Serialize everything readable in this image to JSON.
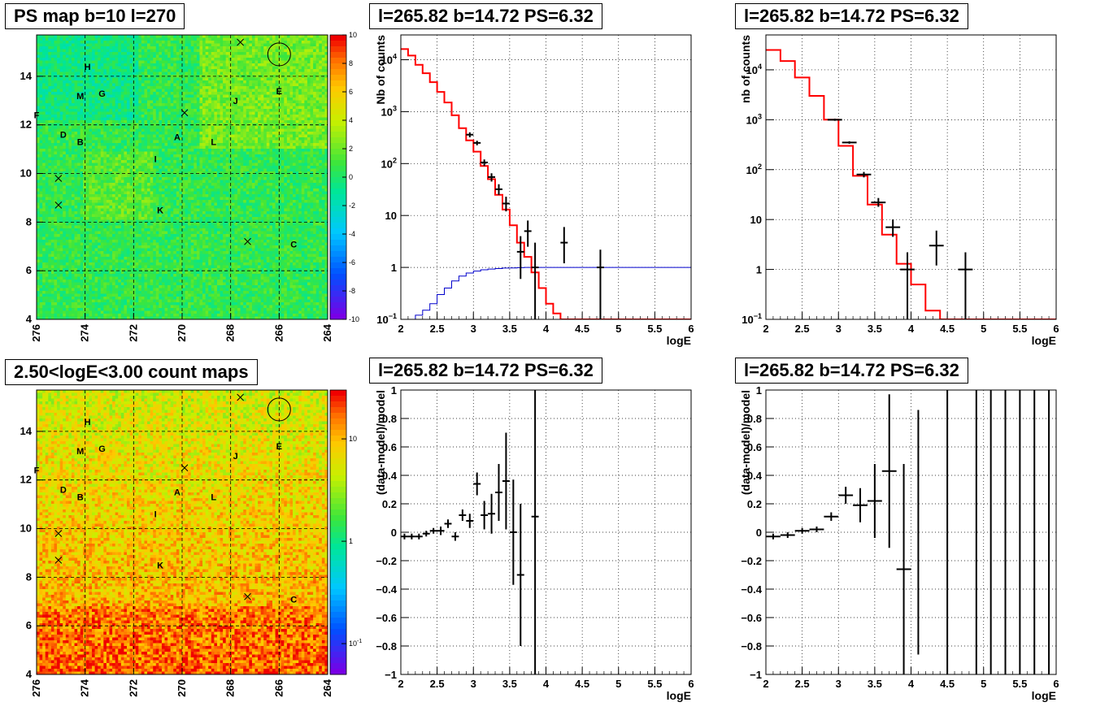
{
  "panels": {
    "ps_map": {
      "title": "PS map b=10 l=270"
    },
    "spec_left": {
      "title": "l=265.82 b=14.72 PS=6.32"
    },
    "spec_right": {
      "title": "l=265.82 b=14.72 PS=6.32"
    },
    "count_map": {
      "title": "2.50<logE<3.00 count maps"
    },
    "resid_left": {
      "title": "l=265.82 b=14.72 PS=6.32"
    },
    "resid_right": {
      "title": "l=265.82 b=14.72 PS=6.32"
    }
  },
  "colors": {
    "model": "#ff0000",
    "exposure": "#0000cc",
    "data": "#000000",
    "grid": "#999999"
  },
  "chart_data": [
    {
      "id": "ps_map",
      "type": "heatmap",
      "title": "PS map b=10 l=270",
      "xlim": [
        276,
        264
      ],
      "ylim": [
        4,
        15.7
      ],
      "x_ticks": [
        "276",
        "274",
        "272",
        "270",
        "268",
        "266",
        "264"
      ],
      "y_ticks": [
        "4",
        "6",
        "8",
        "10",
        "12",
        "14"
      ],
      "colorbar": {
        "scale": "linear",
        "range": [
          -10,
          10
        ],
        "ticks": [
          "10",
          "8",
          "6",
          "4",
          "2",
          "0",
          "-2",
          "-4",
          "-6",
          "-8",
          "-10"
        ]
      },
      "grid": true,
      "source_labels": [
        {
          "name": "H",
          "l": 273.9,
          "b": 14.4
        },
        {
          "name": "M",
          "l": 274.2,
          "b": 13.2
        },
        {
          "name": "G",
          "l": 273.3,
          "b": 13.3
        },
        {
          "name": "F",
          "l": 276.0,
          "b": 12.4
        },
        {
          "name": "D",
          "l": 274.9,
          "b": 11.6
        },
        {
          "name": "B",
          "l": 274.2,
          "b": 11.3
        },
        {
          "name": "A",
          "l": 270.2,
          "b": 11.5
        },
        {
          "name": "L",
          "l": 268.7,
          "b": 11.3
        },
        {
          "name": "J",
          "l": 267.8,
          "b": 13.0
        },
        {
          "name": "E",
          "l": 266.0,
          "b": 13.4
        },
        {
          "name": "I",
          "l": 271.1,
          "b": 10.6
        },
        {
          "name": "K",
          "l": 270.9,
          "b": 8.5
        },
        {
          "name": "C",
          "l": 265.4,
          "b": 7.1
        }
      ],
      "crosses": [
        [
          267.6,
          15.4
        ],
        [
          269.9,
          12.5
        ],
        [
          275.1,
          9.8
        ],
        [
          275.1,
          8.7
        ],
        [
          267.3,
          7.2
        ]
      ],
      "circle": {
        "l": 266.0,
        "b": 14.9
      }
    },
    {
      "id": "spec_left",
      "type": "line",
      "title": "l=265.82 b=14.72 PS=6.32",
      "xlabel": "logE",
      "ylabel": "Nb of counts",
      "xlim": [
        2,
        6
      ],
      "ylim": [
        0.1,
        30000
      ],
      "log_y": true,
      "x_ticks": [
        "2",
        "2.5",
        "3",
        "3.5",
        "4",
        "4.5",
        "5",
        "5.5",
        "6"
      ],
      "y_ticks": [
        "10^{-1}",
        "1",
        "10",
        "10^{2}",
        "10^{3}",
        "10^{4}"
      ],
      "grid": true,
      "model_step": {
        "edges": [
          2.0,
          2.1,
          2.2,
          2.3,
          2.4,
          2.5,
          2.6,
          2.7,
          2.8,
          2.9,
          3.0,
          3.1,
          3.2,
          3.3,
          3.4,
          3.5,
          3.6,
          3.7,
          3.8,
          3.9,
          4.0,
          4.1,
          4.2,
          6.0
        ],
        "values": [
          16000,
          12000,
          8000,
          5500,
          3700,
          2400,
          1500,
          850,
          480,
          280,
          170,
          90,
          50,
          25,
          13,
          6.5,
          3,
          1.6,
          0.8,
          0.4,
          0.2,
          0.13,
          0.1
        ]
      },
      "exposure_step": {
        "edges": [
          2.0,
          2.1,
          2.2,
          2.3,
          2.4,
          2.5,
          2.6,
          2.7,
          2.8,
          2.9,
          3.0,
          3.1,
          3.2,
          3.3,
          3.4,
          3.5,
          3.6,
          3.7,
          3.8,
          6.0
        ],
        "values": [
          0.09,
          0.1,
          0.12,
          0.15,
          0.2,
          0.3,
          0.4,
          0.55,
          0.68,
          0.78,
          0.85,
          0.9,
          0.93,
          0.95,
          0.97,
          0.98,
          0.99,
          1.0,
          1.0
        ]
      },
      "data_points": [
        {
          "x": 2.95,
          "y": 360,
          "ylo": 320,
          "yhi": 400,
          "xerr": 0.05
        },
        {
          "x": 3.05,
          "y": 250,
          "ylo": 225,
          "yhi": 275,
          "xerr": 0.05
        },
        {
          "x": 3.15,
          "y": 105,
          "ylo": 90,
          "yhi": 120,
          "xerr": 0.05
        },
        {
          "x": 3.25,
          "y": 55,
          "ylo": 45,
          "yhi": 65,
          "xerr": 0.05
        },
        {
          "x": 3.35,
          "y": 32,
          "ylo": 25,
          "yhi": 40,
          "xerr": 0.05
        },
        {
          "x": 3.45,
          "y": 17,
          "ylo": 12,
          "yhi": 23,
          "xerr": 0.05
        },
        {
          "x": 3.65,
          "y": 2,
          "ylo": 0.6,
          "yhi": 4,
          "xerr": 0.05
        },
        {
          "x": 3.75,
          "y": 5,
          "ylo": 2.5,
          "yhi": 8,
          "xerr": 0.05
        },
        {
          "x": 3.85,
          "y": 1,
          "ylo": 0.1,
          "yhi": 3,
          "xerr": 0.05
        },
        {
          "x": 4.25,
          "y": 3,
          "ylo": 1.2,
          "yhi": 6,
          "xerr": 0.05
        },
        {
          "x": 4.75,
          "y": 1,
          "ylo": 0.1,
          "yhi": 2.2,
          "xerr": 0.05
        }
      ]
    },
    {
      "id": "spec_right",
      "type": "line",
      "title": "l=265.82 b=14.72 PS=6.32",
      "xlabel": "logE",
      "ylabel": "nb of counts",
      "xlim": [
        2,
        6
      ],
      "ylim": [
        0.1,
        50000
      ],
      "log_y": true,
      "x_ticks": [
        "2",
        "2.5",
        "3",
        "3.5",
        "4",
        "4.5",
        "5",
        "5.5",
        "6"
      ],
      "y_ticks": [
        "10^{-1}",
        "1",
        "10",
        "10^{2}",
        "10^{3}",
        "10^{4}"
      ],
      "grid": true,
      "model_step": {
        "edges": [
          2.0,
          2.2,
          2.4,
          2.6,
          2.8,
          3.0,
          3.2,
          3.4,
          3.6,
          3.8,
          4.0,
          4.2,
          4.4,
          6.0
        ],
        "values": [
          25000,
          15000,
          7000,
          3000,
          1000,
          300,
          75,
          20,
          5,
          1.3,
          0.5,
          0.15,
          0.1
        ]
      },
      "data_points": [
        {
          "x": 2.95,
          "y": 1000,
          "ylo": 950,
          "yhi": 1050,
          "xerr": 0.1
        },
        {
          "x": 3.15,
          "y": 350,
          "ylo": 330,
          "yhi": 370,
          "xerr": 0.1
        },
        {
          "x": 3.35,
          "y": 80,
          "ylo": 70,
          "yhi": 90,
          "xerr": 0.1
        },
        {
          "x": 3.55,
          "y": 22,
          "ylo": 18,
          "yhi": 27,
          "xerr": 0.1
        },
        {
          "x": 3.75,
          "y": 7,
          "ylo": 4.5,
          "yhi": 10,
          "xerr": 0.1
        },
        {
          "x": 3.95,
          "y": 1,
          "ylo": 0.1,
          "yhi": 2.2,
          "xerr": 0.1
        },
        {
          "x": 4.35,
          "y": 3,
          "ylo": 1.2,
          "yhi": 6,
          "xerr": 0.1
        },
        {
          "x": 4.75,
          "y": 1,
          "ylo": 0.1,
          "yhi": 2.2,
          "xerr": 0.1
        }
      ]
    },
    {
      "id": "count_map",
      "type": "heatmap",
      "title": "2.50<logE<3.00 count maps",
      "xlim": [
        276,
        264
      ],
      "ylim": [
        4,
        15.7
      ],
      "x_ticks": [
        "276",
        "274",
        "272",
        "270",
        "268",
        "266",
        "264"
      ],
      "y_ticks": [
        "4",
        "6",
        "8",
        "10",
        "12",
        "14"
      ],
      "colorbar": {
        "scale": "log",
        "range": [
          0.05,
          30
        ],
        "ticks": [
          "10",
          "1",
          "10^{-1}"
        ]
      },
      "grid": true
    },
    {
      "id": "resid_left",
      "type": "scatter",
      "title": "l=265.82 b=14.72 PS=6.32",
      "xlabel": "logE",
      "ylabel": "(data-model)/model",
      "xlim": [
        2,
        6
      ],
      "ylim": [
        -1,
        1
      ],
      "x_ticks": [
        "2",
        "2.5",
        "3",
        "3.5",
        "4",
        "4.5",
        "5",
        "5.5",
        "6"
      ],
      "y_ticks": [
        "-1",
        "-0.8",
        "-0.6",
        "-0.4",
        "-0.2",
        "0",
        "0.2",
        "0.4",
        "0.6",
        "0.8",
        "1"
      ],
      "grid": true,
      "data_points": [
        {
          "x": 2.05,
          "y": -0.03,
          "err": 0.02,
          "xerr": 0.05
        },
        {
          "x": 2.15,
          "y": -0.03,
          "err": 0.02,
          "xerr": 0.05
        },
        {
          "x": 2.25,
          "y": -0.03,
          "err": 0.02,
          "xerr": 0.05
        },
        {
          "x": 2.35,
          "y": -0.01,
          "err": 0.02,
          "xerr": 0.05
        },
        {
          "x": 2.45,
          "y": 0.01,
          "err": 0.02,
          "xerr": 0.05
        },
        {
          "x": 2.55,
          "y": 0.01,
          "err": 0.03,
          "xerr": 0.05
        },
        {
          "x": 2.65,
          "y": 0.06,
          "err": 0.03,
          "xerr": 0.05
        },
        {
          "x": 2.75,
          "y": -0.03,
          "err": 0.03,
          "xerr": 0.05
        },
        {
          "x": 2.85,
          "y": 0.12,
          "err": 0.04,
          "xerr": 0.05
        },
        {
          "x": 2.95,
          "y": 0.08,
          "err": 0.05,
          "xerr": 0.05
        },
        {
          "x": 3.05,
          "y": 0.34,
          "err": 0.08,
          "xerr": 0.05
        },
        {
          "x": 3.15,
          "y": 0.12,
          "err": 0.1,
          "xerr": 0.05
        },
        {
          "x": 3.25,
          "y": 0.13,
          "err": 0.14,
          "xerr": 0.05
        },
        {
          "x": 3.35,
          "y": 0.28,
          "err": 0.2,
          "xerr": 0.05
        },
        {
          "x": 3.45,
          "y": 0.36,
          "err": 0.34,
          "xerr": 0.05
        },
        {
          "x": 3.55,
          "y": 0.0,
          "err": 0.37,
          "xerr": 0.05
        },
        {
          "x": 3.65,
          "y": -0.3,
          "err": 0.5,
          "xerr": 0.05
        },
        {
          "x": 3.85,
          "y": 0.11,
          "err": 1.2,
          "xerr": 0.05
        }
      ]
    },
    {
      "id": "resid_right",
      "type": "scatter",
      "title": "l=265.82 b=14.72 PS=6.32",
      "xlabel": "logE",
      "ylabel": "(data-model)/model",
      "xlim": [
        2,
        6
      ],
      "ylim": [
        -1,
        1
      ],
      "x_ticks": [
        "2",
        "2.5",
        "3",
        "3.5",
        "4",
        "4.5",
        "5",
        "5.5",
        "6"
      ],
      "y_ticks": [
        "-1",
        "-0.8",
        "-0.6",
        "-0.4",
        "-0.2",
        "0",
        "0.2",
        "0.4",
        "0.6",
        "0.8",
        "1"
      ],
      "grid": true,
      "data_points": [
        {
          "x": 2.1,
          "y": -0.03,
          "err": 0.02,
          "xerr": 0.1
        },
        {
          "x": 2.3,
          "y": -0.02,
          "err": 0.02,
          "xerr": 0.1
        },
        {
          "x": 2.5,
          "y": 0.01,
          "err": 0.02,
          "xerr": 0.1
        },
        {
          "x": 2.7,
          "y": 0.02,
          "err": 0.02,
          "xerr": 0.1
        },
        {
          "x": 2.9,
          "y": 0.11,
          "err": 0.03,
          "xerr": 0.1
        },
        {
          "x": 3.1,
          "y": 0.26,
          "err": 0.06,
          "xerr": 0.1
        },
        {
          "x": 3.3,
          "y": 0.19,
          "err": 0.12,
          "xerr": 0.1
        },
        {
          "x": 3.5,
          "y": 0.22,
          "err": 0.26,
          "xerr": 0.1
        },
        {
          "x": 3.7,
          "y": 0.43,
          "err": 0.54,
          "xerr": 0.1
        },
        {
          "x": 3.9,
          "y": -0.26,
          "err": 0.74,
          "xerr": 0.1
        },
        {
          "x": 4.1,
          "y": 0.0,
          "err": 0.86,
          "xerr": 0
        },
        {
          "x": 4.5,
          "y": 0.0,
          "err": 1.2,
          "xerr": 0
        },
        {
          "x": 4.9,
          "y": 0.0,
          "err": 1.2,
          "xerr": 0
        },
        {
          "x": 5.1,
          "y": 0.0,
          "err": 1.2,
          "xerr": 0
        },
        {
          "x": 5.3,
          "y": 0.0,
          "err": 1.2,
          "xerr": 0
        },
        {
          "x": 5.5,
          "y": 0.0,
          "err": 1.2,
          "xerr": 0
        },
        {
          "x": 5.7,
          "y": 0.0,
          "err": 1.2,
          "xerr": 0
        },
        {
          "x": 5.9,
          "y": 0.0,
          "err": 1.2,
          "xerr": 0
        }
      ]
    }
  ]
}
